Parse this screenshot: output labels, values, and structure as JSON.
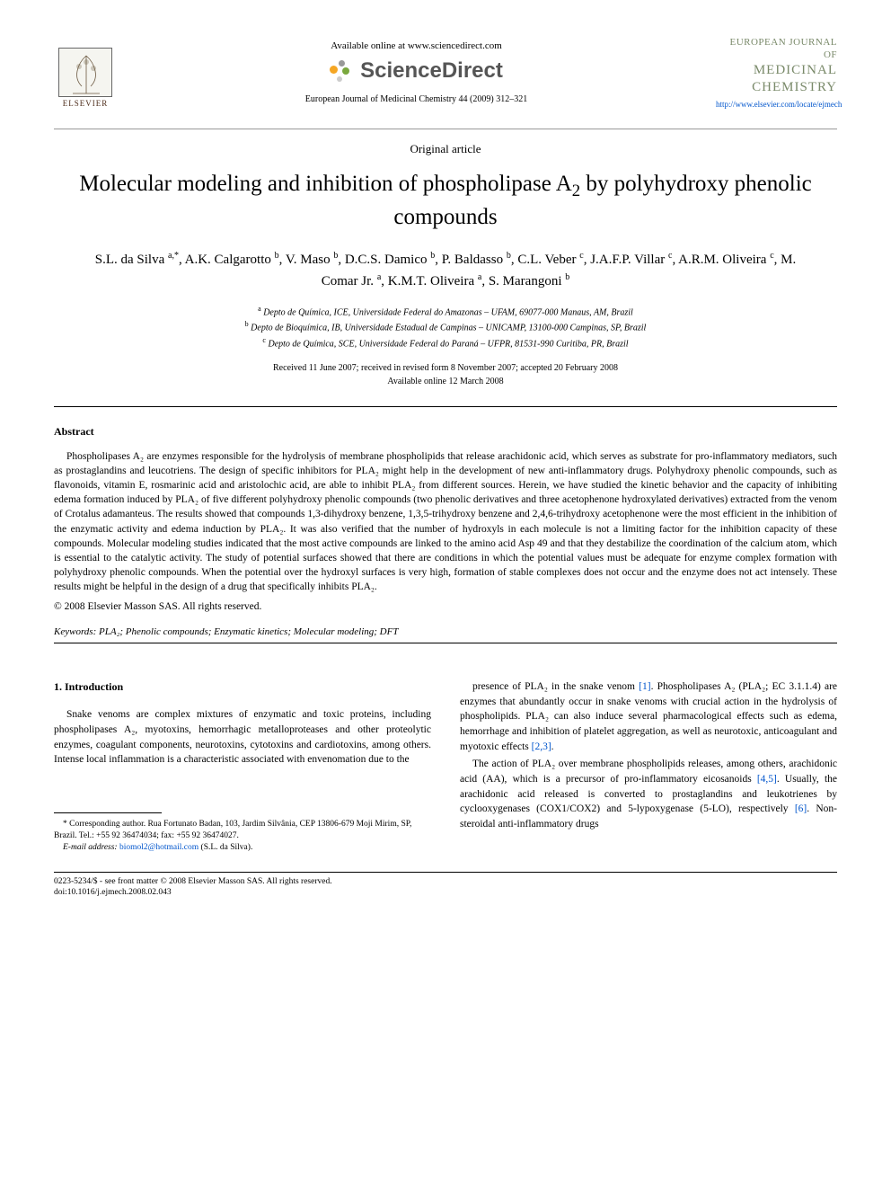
{
  "header": {
    "available_online": "Available online at www.sciencedirect.com",
    "sciencedirect": "ScienceDirect",
    "citation": "European Journal of Medicinal Chemistry 44 (2009) 312–321",
    "elsevier_label": "ELSEVIER",
    "journal_cover": {
      "line1": "EUROPEAN JOURNAL OF",
      "line2": "MEDICINAL",
      "line3": "CHEMISTRY"
    },
    "journal_url": "http://www.elsevier.com/locate/ejmech"
  },
  "article": {
    "type": "Original article",
    "title_pre": "Molecular modeling and inhibition of phospholipase A",
    "title_sub": "2",
    "title_post": " by polyhydroxy phenolic compounds",
    "authors_html": "S.L. da Silva <sup>a,*</sup>, A.K. Calgarotto <sup>b</sup>, V. Maso <sup>b</sup>, D.C.S. Damico <sup>b</sup>, P. Baldasso <sup>b</sup>, C.L. Veber <sup>c</sup>, J.A.F.P. Villar <sup>c</sup>, A.R.M. Oliveira <sup>c</sup>, M. Comar Jr. <sup>a</sup>, K.M.T. Oliveira <sup>a</sup>, S. Marangoni <sup>b</sup>",
    "affiliations": {
      "a": "Depto de Química, ICE, Universidade Federal do Amazonas – UFAM, 69077-000 Manaus, AM, Brazil",
      "b": "Depto de Bioquímica, IB, Universidade Estadual de Campinas – UNICAMP, 13100-000 Campinas, SP, Brazil",
      "c": "Depto de Química, SCE, Universidade Federal do Paraná – UFPR, 81531-990 Curitiba, PR, Brazil"
    },
    "dates": {
      "received": "Received 11 June 2007; received in revised form 8 November 2007; accepted 20 February 2008",
      "available": "Available online 12 March 2008"
    }
  },
  "abstract": {
    "heading": "Abstract",
    "text": "Phospholipases A₂ are enzymes responsible for the hydrolysis of membrane phospholipids that release arachidonic acid, which serves as substrate for pro-inflammatory mediators, such as prostaglandins and leucotriens. The design of specific inhibitors for PLA₂ might help in the development of new anti-inflammatory drugs. Polyhydroxy phenolic compounds, such as flavonoids, vitamin E, rosmarinic acid and aristolochic acid, are able to inhibit PLA₂ from different sources. Herein, we have studied the kinetic behavior and the capacity of inhibiting edema formation induced by PLA₂ of five different polyhydroxy phenolic compounds (two phenolic derivatives and three acetophenone hydroxylated derivatives) extracted from the venom of Crotalus adamanteus. The results showed that compounds 1,3-dihydroxy benzene, 1,3,5-trihydroxy benzene and 2,4,6-trihydroxy acetophenone were the most efficient in the inhibition of the enzymatic activity and edema induction by PLA₂. It was also verified that the number of hydroxyls in each molecule is not a limiting factor for the inhibition capacity of these compounds. Molecular modeling studies indicated that the most active compounds are linked to the amino acid Asp 49 and that they destabilize the coordination of the calcium atom, which is essential to the catalytic activity. The study of potential surfaces showed that there are conditions in which the potential values must be adequate for enzyme complex formation with polyhydroxy phenolic compounds. When the potential over the hydroxyl surfaces is very high, formation of stable complexes does not occur and the enzyme does not act intensely. These results might be helpful in the design of a drug that specifically inhibits PLA₂.",
    "copyright": "© 2008 Elsevier Masson SAS. All rights reserved."
  },
  "keywords": {
    "label": "Keywords:",
    "text": " PLA₂; Phenolic compounds; Enzymatic kinetics; Molecular modeling; DFT"
  },
  "body": {
    "intro_heading": "1. Introduction",
    "col1_p1": "Snake venoms are complex mixtures of enzymatic and toxic proteins, including phospholipases A₂, myotoxins, hemorrhagic metalloproteases and other proteolytic enzymes, coagulant components, neurotoxins, cytotoxins and cardiotoxins, among others. Intense local inflammation is a characteristic associated with envenomation due to the",
    "col2_p1_a": "presence of PLA₂ in the snake venom ",
    "col2_p1_ref1": "[1]",
    "col2_p1_b": ". Phospholipases A₂ (PLA₂; EC 3.1.1.4) are enzymes that abundantly occur in snake venoms with crucial action in the hydrolysis of phospholipids. PLA₂ can also induce several pharmacological effects such as edema, hemorrhage and inhibition of platelet aggregation, as well as neurotoxic, anticoagulant and myotoxic effects ",
    "col2_p1_ref2": "[2,3]",
    "col2_p1_c": ".",
    "col2_p2_a": "The action of PLA₂ over membrane phospholipids releases, among others, arachidonic acid (AA), which is a precursor of pro-inflammatory eicosanoids ",
    "col2_p2_ref1": "[4,5]",
    "col2_p2_b": ". Usually, the arachidonic acid released is converted to prostaglandins and leukotrienes by cyclooxygenases (COX1/COX2) and 5-lypoxygenase (5-LO), respectively ",
    "col2_p2_ref2": "[6]",
    "col2_p2_c": ". Non-steroidal anti-inflammatory drugs"
  },
  "footnotes": {
    "corresponding": "* Corresponding author. Rua Fortunato Badan, 103, Jardim Silvânia, CEP 13806-679 Moji Mirim, SP, Brazil. Tel.: +55 92 36474034; fax: +55 92 36474027.",
    "email_label": "E-mail address:",
    "email": "biomol2@hotmail.com",
    "email_suffix": " (S.L. da Silva)."
  },
  "footer": {
    "line1": "0223-5234/$ - see front matter © 2008 Elsevier Masson SAS. All rights reserved.",
    "line2": "doi:10.1016/j.ejmech.2008.02.043"
  },
  "colors": {
    "link": "#0055cc",
    "journal_title": "#7a8a6a",
    "elsevier": "#4d2c1a",
    "sd_orange": "#f5a623",
    "sd_green": "#7aa83e",
    "sd_gray": "#999999"
  }
}
